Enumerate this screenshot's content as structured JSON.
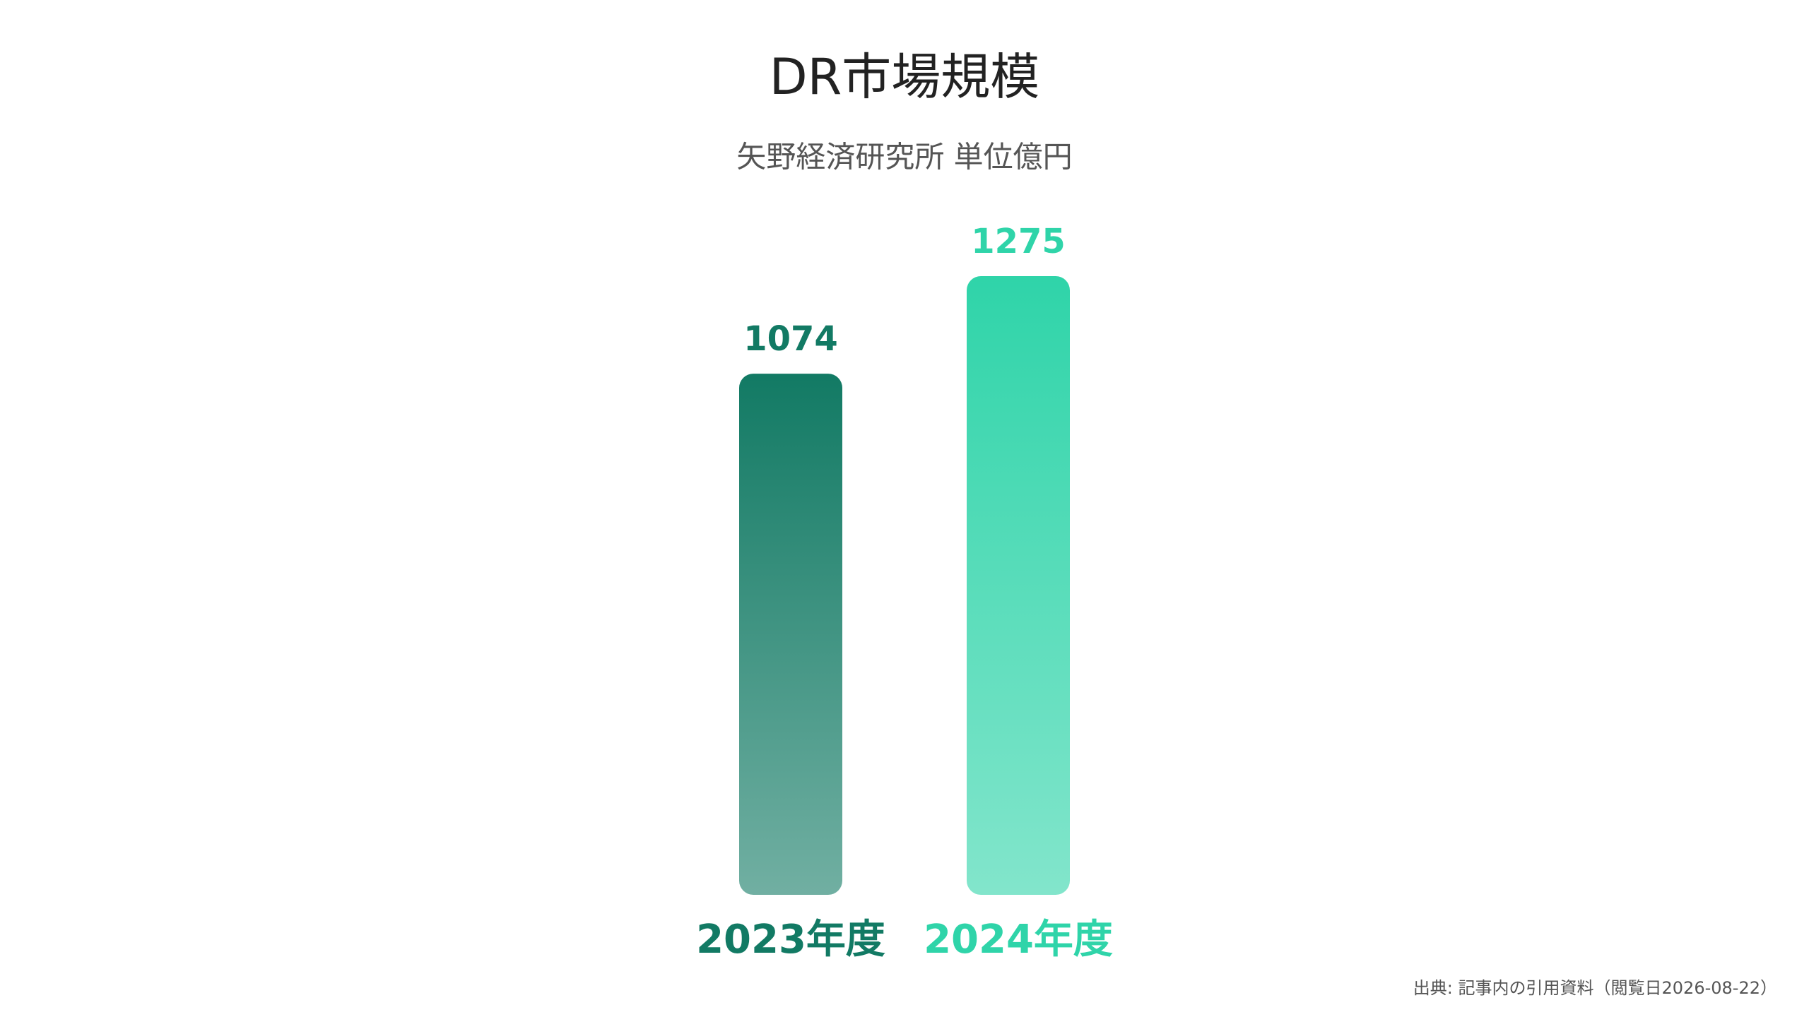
{
  "chart_data": {
    "type": "bar",
    "title": "DR市場規模",
    "subtitle": "矢野経済研究所 単位億円",
    "categories": [
      "2023年度",
      "2024年度"
    ],
    "values": [
      1074,
      1275
    ],
    "colors": [
      "#127a64",
      "#2fd4a9"
    ],
    "source": "出典: 記事内の引用資料（閲覧日2026-08-22）"
  }
}
